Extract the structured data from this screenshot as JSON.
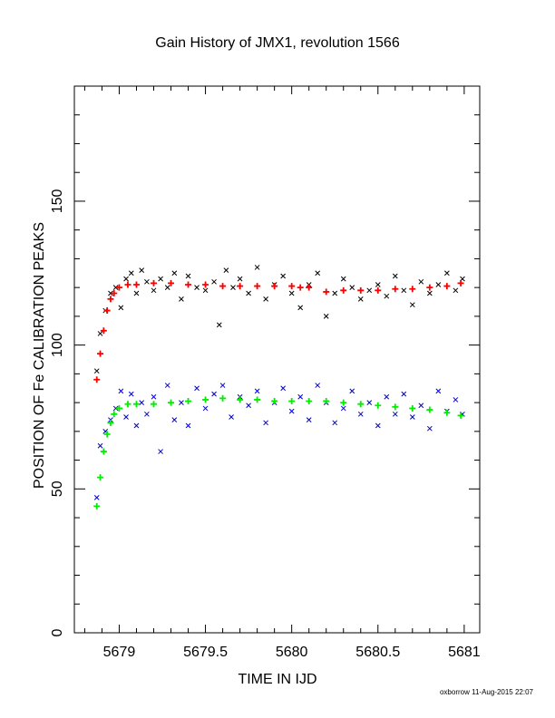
{
  "chart_data": {
    "type": "scatter",
    "title": "Gain History of JMX1, revolution 1566",
    "xlabel": "TIME IN IJD",
    "ylabel": "POSITION OF Fe CALIBRATION PEAKS",
    "xlim": [
      5678.74,
      5681.09
    ],
    "ylim": [
      0,
      190
    ],
    "xticks": [
      {
        "value": 5679,
        "label": "5679"
      },
      {
        "value": 5679.5,
        "label": "5679.5"
      },
      {
        "value": 5680,
        "label": "5680"
      },
      {
        "value": 5680.5,
        "label": "5680.5"
      },
      {
        "value": 5681,
        "label": "5681"
      }
    ],
    "yticks": [
      {
        "value": 0,
        "label": "0"
      },
      {
        "value": 50,
        "label": "50"
      },
      {
        "value": 100,
        "label": "100"
      },
      {
        "value": 150,
        "label": "150"
      }
    ],
    "grid": false,
    "legend": "none",
    "series": [
      {
        "marker": "x",
        "color": "#000000",
        "x": [
          5678.87,
          5678.89,
          5678.92,
          5678.95,
          5678.98,
          5679.01,
          5679.04,
          5679.07,
          5679.1,
          5679.13,
          5679.16,
          5679.2,
          5679.24,
          5679.28,
          5679.32,
          5679.36,
          5679.4,
          5679.45,
          5679.5,
          5679.55,
          5679.58,
          5679.62,
          5679.66,
          5679.7,
          5679.75,
          5679.8,
          5679.85,
          5679.9,
          5679.95,
          5680.0,
          5680.05,
          5680.1,
          5680.15,
          5680.2,
          5680.25,
          5680.3,
          5680.35,
          5680.4,
          5680.45,
          5680.5,
          5680.55,
          5680.6,
          5680.65,
          5680.7,
          5680.75,
          5680.8,
          5680.85,
          5680.9,
          5680.95,
          5680.99
        ],
        "y": [
          91,
          104,
          112,
          118,
          120,
          113,
          123,
          125,
          118,
          126,
          122,
          119,
          123,
          120,
          125,
          116,
          124,
          120,
          119,
          122,
          107,
          126,
          120,
          123,
          118,
          127,
          116,
          121,
          124,
          118,
          113,
          121,
          125,
          110,
          118,
          123,
          120,
          116,
          119,
          121,
          117,
          124,
          119,
          114,
          122,
          118,
          121,
          125,
          119,
          123
        ]
      },
      {
        "marker": "+",
        "color": "#ff0000",
        "x": [
          5678.87,
          5678.89,
          5678.91,
          5678.93,
          5678.95,
          5678.97,
          5679.0,
          5679.05,
          5679.1,
          5679.2,
          5679.3,
          5679.4,
          5679.5,
          5679.6,
          5679.7,
          5679.8,
          5679.9,
          5680.0,
          5680.05,
          5680.1,
          5680.2,
          5680.3,
          5680.4,
          5680.5,
          5680.6,
          5680.7,
          5680.8,
          5680.9,
          5680.98
        ],
        "y": [
          88,
          97,
          105,
          112,
          116,
          118,
          120,
          121,
          121,
          121.5,
          121.5,
          121,
          121,
          120.5,
          120.5,
          120.5,
          120.5,
          120.5,
          120,
          120,
          118.5,
          119,
          119,
          119,
          119.5,
          119.5,
          120,
          120.5,
          121.5
        ]
      },
      {
        "marker": "x",
        "color": "#0000cc",
        "x": [
          5678.87,
          5678.89,
          5678.92,
          5678.95,
          5678.98,
          5679.01,
          5679.04,
          5679.07,
          5679.1,
          5679.13,
          5679.16,
          5679.2,
          5679.24,
          5679.28,
          5679.32,
          5679.36,
          5679.4,
          5679.45,
          5679.5,
          5679.55,
          5679.6,
          5679.65,
          5679.7,
          5679.75,
          5679.8,
          5679.85,
          5679.9,
          5679.95,
          5680.0,
          5680.05,
          5680.1,
          5680.15,
          5680.2,
          5680.25,
          5680.3,
          5680.35,
          5680.4,
          5680.45,
          5680.5,
          5680.55,
          5680.6,
          5680.65,
          5680.7,
          5680.75,
          5680.8,
          5680.85,
          5680.9,
          5680.95,
          5680.99
        ],
        "y": [
          47,
          65,
          70,
          74,
          78,
          84,
          75,
          83,
          72,
          80,
          76,
          82,
          63,
          86,
          74,
          80,
          72,
          85,
          78,
          83,
          86,
          75,
          82,
          79,
          84,
          73,
          80,
          85,
          77,
          82,
          74,
          86,
          80,
          73,
          78,
          84,
          76,
          80,
          72,
          82,
          76,
          83,
          75,
          79,
          71,
          84,
          77,
          81,
          76
        ]
      },
      {
        "marker": "+",
        "color": "#00ee00",
        "x": [
          5678.87,
          5678.89,
          5678.91,
          5678.93,
          5678.95,
          5678.97,
          5679.0,
          5679.05,
          5679.1,
          5679.2,
          5679.3,
          5679.4,
          5679.5,
          5679.6,
          5679.7,
          5679.8,
          5679.9,
          5680.0,
          5680.1,
          5680.2,
          5680.3,
          5680.4,
          5680.5,
          5680.6,
          5680.7,
          5680.8,
          5680.9,
          5680.98
        ],
        "y": [
          44,
          54,
          63,
          69,
          73,
          76,
          78,
          79.5,
          79.5,
          79.5,
          80,
          80.5,
          81,
          81.5,
          81,
          81,
          80.5,
          80.5,
          80.5,
          80.5,
          80,
          79.5,
          79,
          78.5,
          78,
          77.5,
          76.5,
          75.5
        ]
      }
    ]
  },
  "footer": {
    "credit": "oxborrow 11-Aug-2015 22:07"
  }
}
